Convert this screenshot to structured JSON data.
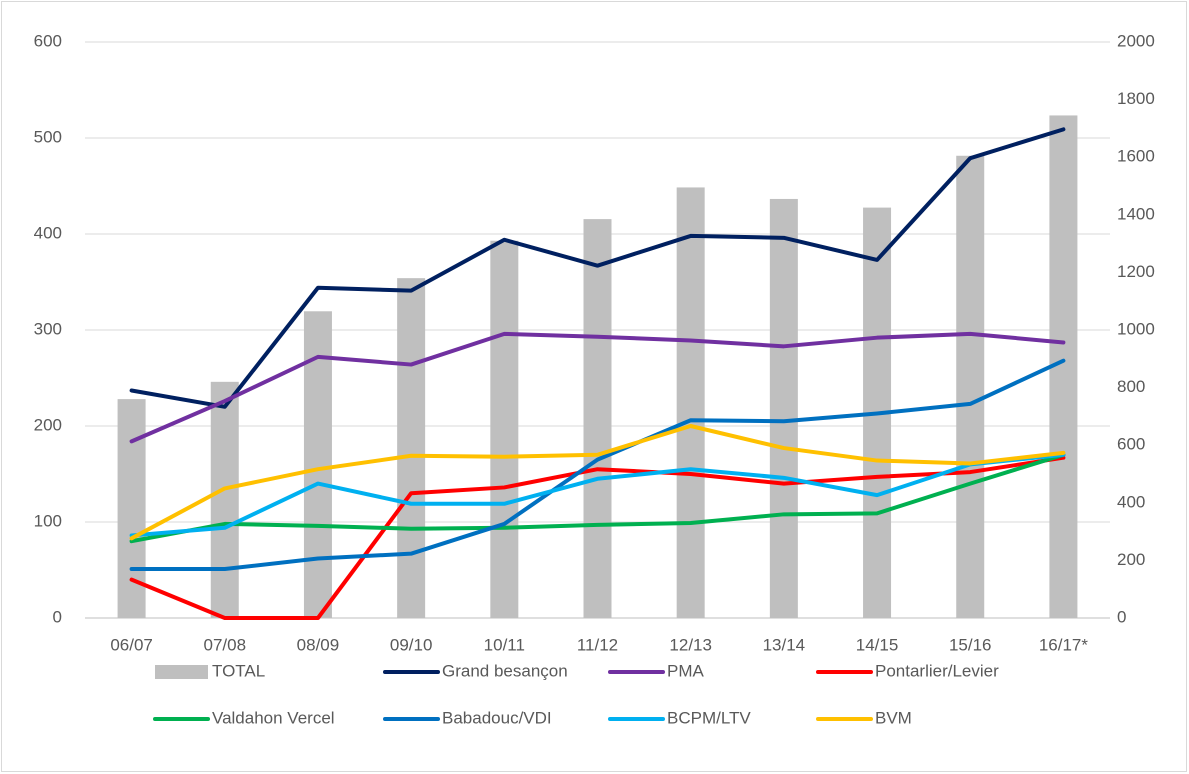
{
  "chart_data": {
    "type": "combo",
    "categories": [
      "06/07",
      "07/08",
      "08/09",
      "09/10",
      "10/11",
      "11/12",
      "12/13",
      "13/14",
      "14/15",
      "15/16",
      "16/17*"
    ],
    "ylim": [
      0,
      600
    ],
    "yticks": [
      0,
      100,
      200,
      300,
      400,
      500,
      600
    ],
    "y2lim": [
      0,
      2000
    ],
    "y2ticks": [
      0,
      200,
      400,
      600,
      800,
      1000,
      1200,
      1400,
      1600,
      1800,
      2000
    ],
    "grid": true,
    "legend": "bottom",
    "series": [
      {
        "name": "TOTAL",
        "type": "bar",
        "axis": "y2",
        "color": "#bfbfbf",
        "values": [
          760,
          820,
          1065,
          1180,
          1310,
          1385,
          1495,
          1455,
          1425,
          1605,
          1745
        ]
      },
      {
        "name": "Grand besançon",
        "type": "line",
        "color": "#002060",
        "values": [
          237,
          220,
          344,
          341,
          394,
          367,
          398,
          396,
          373,
          479,
          509
        ]
      },
      {
        "name": "PMA",
        "type": "line",
        "color": "#7030a0",
        "values": [
          184,
          226,
          272,
          264,
          296,
          293,
          289,
          283,
          292,
          296,
          287
        ]
      },
      {
        "name": "Pontarlier/Levier",
        "type": "line",
        "color": "#ff0000",
        "values": [
          40,
          0,
          0,
          130,
          136,
          155,
          150,
          140,
          147,
          152,
          167
        ]
      },
      {
        "name": "Valdahon Vercel",
        "type": "line",
        "color": "#00b050",
        "values": [
          80,
          98,
          96,
          93,
          94,
          97,
          99,
          108,
          109,
          140,
          170
        ]
      },
      {
        "name": "Babadouc/VDI",
        "type": "line",
        "color": "#0070c0",
        "values": [
          51,
          51,
          62,
          67,
          98,
          165,
          206,
          205,
          213,
          223,
          268
        ]
      },
      {
        "name": "BCPM/LTV",
        "type": "line",
        "color": "#00b0f0",
        "values": [
          86,
          94,
          140,
          119,
          119,
          145,
          155,
          146,
          128,
          160,
          170
        ]
      },
      {
        "name": "BVM",
        "type": "line",
        "color": "#ffc000",
        "values": [
          83,
          135,
          155,
          169,
          168,
          170,
          200,
          177,
          164,
          161,
          172
        ]
      }
    ]
  }
}
